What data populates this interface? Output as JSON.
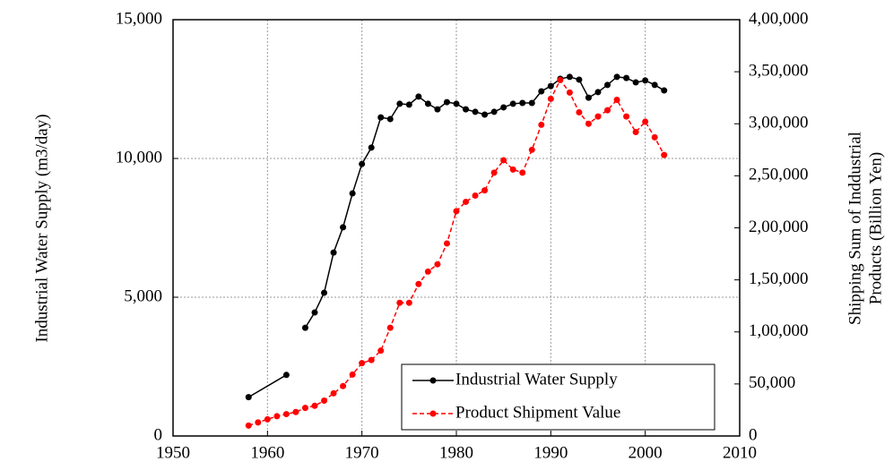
{
  "chart_data": {
    "type": "line",
    "ylabel": "Industrial Water Supply (m3/day)",
    "y2label": [
      "Shipping Sum of Inddustrial",
      "Products (Billion Yen)"
    ],
    "xlim": [
      1950,
      2010
    ],
    "xticks": [
      1950,
      1960,
      1970,
      1980,
      1990,
      2000,
      2010
    ],
    "ylim": [
      0,
      15000
    ],
    "yticks": [
      0,
      {
        "value": 5000,
        "label": "5,000"
      },
      {
        "value": 10000,
        "label": "10,000"
      },
      {
        "value": 15000,
        "label": "15,000"
      }
    ],
    "y2lim": [
      0,
      400000
    ],
    "y2ticks": [
      0,
      {
        "value": 50000,
        "label": "50,000"
      },
      {
        "value": 100000,
        "label": "1,00,000"
      },
      {
        "value": 150000,
        "label": "1,50,000"
      },
      {
        "value": 200000,
        "label": "2,00,000"
      },
      {
        "value": 250000,
        "label": "2,50,000"
      },
      {
        "value": 300000,
        "label": "3,00,000"
      },
      {
        "value": 350000,
        "label": "3,50,000"
      },
      {
        "value": 400000,
        "label": "4,00,000"
      }
    ],
    "grid": true,
    "legend": "lower right",
    "series": [
      {
        "name": "Industrial Water Supply",
        "color": "#000000",
        "dashed": false,
        "x": [
          1958,
          1962,
          1963,
          1964,
          1965,
          1966,
          1967,
          1968,
          1969,
          1970,
          1971,
          1972,
          1973,
          1974,
          1975,
          1976,
          1977,
          1978,
          1979,
          1980,
          1981,
          1982,
          1983,
          1984,
          1985,
          1986,
          1987,
          1988,
          1989,
          1990,
          1991,
          1992,
          1993,
          1994,
          1995,
          1996,
          1997,
          1998,
          1999,
          2000,
          2001,
          2002
        ],
        "values": [
          1400,
          2200,
          null,
          3900,
          4450,
          5160,
          6610,
          7520,
          8740,
          9800,
          10390,
          11480,
          11420,
          11970,
          11940,
          12230,
          11970,
          11770,
          12030,
          11970,
          11770,
          11680,
          11580,
          11680,
          11840,
          11970,
          12000,
          12000,
          12420,
          12610,
          12870,
          12940,
          12840,
          12190,
          12390,
          12650,
          12940,
          12900,
          12740,
          12810,
          12650,
          12450
        ]
      },
      {
        "name": "Product Shipment Value",
        "color": "#ff0000",
        "dashed": true,
        "axis": "y2",
        "x": [
          1958,
          1959,
          1960,
          1961,
          1962,
          1963,
          1964,
          1965,
          1966,
          1967,
          1968,
          1969,
          1970,
          1971,
          1972,
          1973,
          1974,
          1975,
          1976,
          1977,
          1978,
          1979,
          1980,
          1981,
          1982,
          1983,
          1984,
          1985,
          1986,
          1987,
          1988,
          1989,
          1990,
          1991,
          1992,
          1993,
          1994,
          1995,
          1996,
          1997,
          1998,
          1999,
          2000,
          2001,
          2002
        ],
        "values": [
          10000,
          13000,
          16000,
          19000,
          21000,
          23000,
          27000,
          29000,
          34000,
          41000,
          48000,
          59000,
          70000,
          73000,
          82000,
          104000,
          128000,
          128000,
          146000,
          158000,
          165000,
          185000,
          216000,
          225000,
          231000,
          236000,
          253000,
          265000,
          256000,
          253000,
          275000,
          299000,
          324000,
          342000,
          330000,
          311000,
          300000,
          307000,
          313000,
          323000,
          307000,
          292000,
          302000,
          287000,
          270000
        ]
      }
    ]
  }
}
